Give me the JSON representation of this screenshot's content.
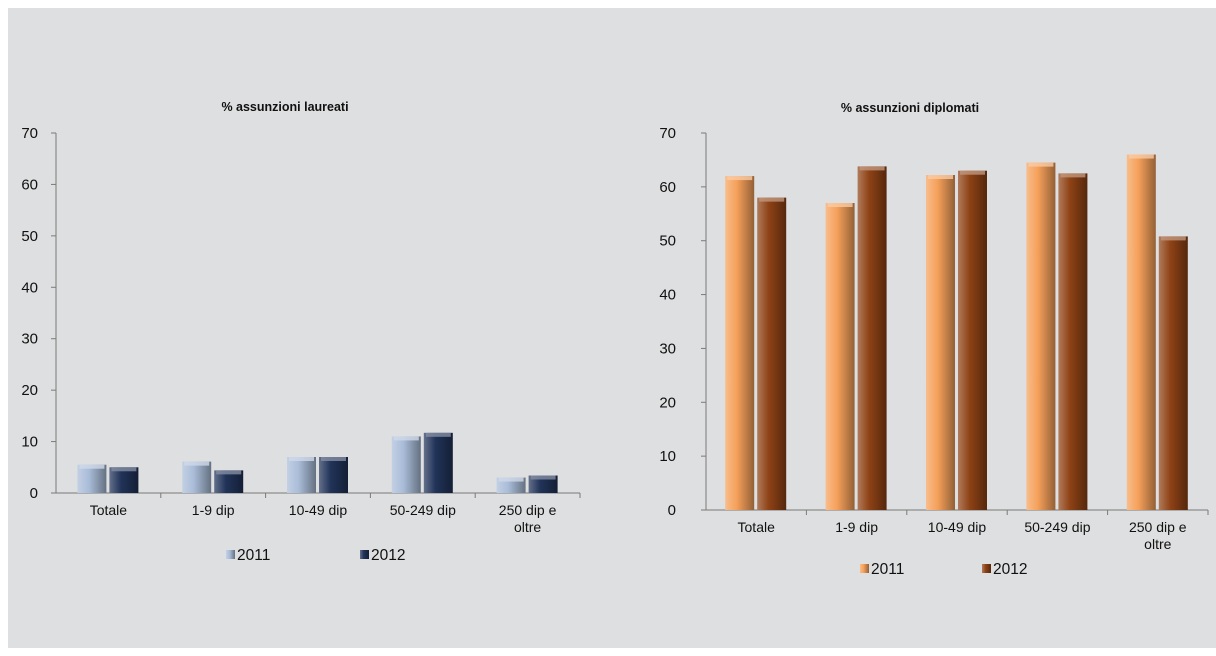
{
  "chart_data": [
    {
      "type": "bar",
      "title": "% assunzioni laureati",
      "categories": [
        [
          "Totale"
        ],
        [
          "1-9 dip"
        ],
        [
          "10-49 dip"
        ],
        [
          "50-249 dip"
        ],
        [
          "250 dip e",
          "oltre"
        ]
      ],
      "series": [
        {
          "name": "2011",
          "values": [
            5.5,
            6.1,
            7.0,
            11.0,
            3.0
          ],
          "color": "#a9bcd8"
        },
        {
          "name": "2012",
          "values": [
            5.0,
            4.4,
            7.0,
            11.7,
            3.4
          ],
          "color": "#213359"
        }
      ],
      "ylim": [
        0,
        70
      ],
      "yticks": [
        0,
        10,
        20,
        30,
        40,
        50,
        60,
        70
      ],
      "xlabel": "",
      "ylabel": "",
      "grid": false,
      "legend_position": "bottom"
    },
    {
      "type": "bar",
      "title": "% assunzioni diplomati",
      "categories": [
        [
          "Totale"
        ],
        [
          "1-9 dip"
        ],
        [
          "10-49 dip"
        ],
        [
          "50-249 dip"
        ],
        [
          "250 dip e",
          "oltre"
        ]
      ],
      "series": [
        {
          "name": "2011",
          "values": [
            62.0,
            57.0,
            62.2,
            64.5,
            66.0
          ],
          "color": "#f5a05a"
        },
        {
          "name": "2012",
          "values": [
            58.0,
            63.8,
            63.0,
            62.5,
            50.8
          ],
          "color": "#8e4215"
        }
      ],
      "ylim": [
        0,
        70
      ],
      "yticks": [
        0,
        10,
        20,
        30,
        40,
        50,
        60,
        70
      ],
      "xlabel": "",
      "ylabel": "",
      "grid": false,
      "legend_position": "bottom"
    }
  ]
}
